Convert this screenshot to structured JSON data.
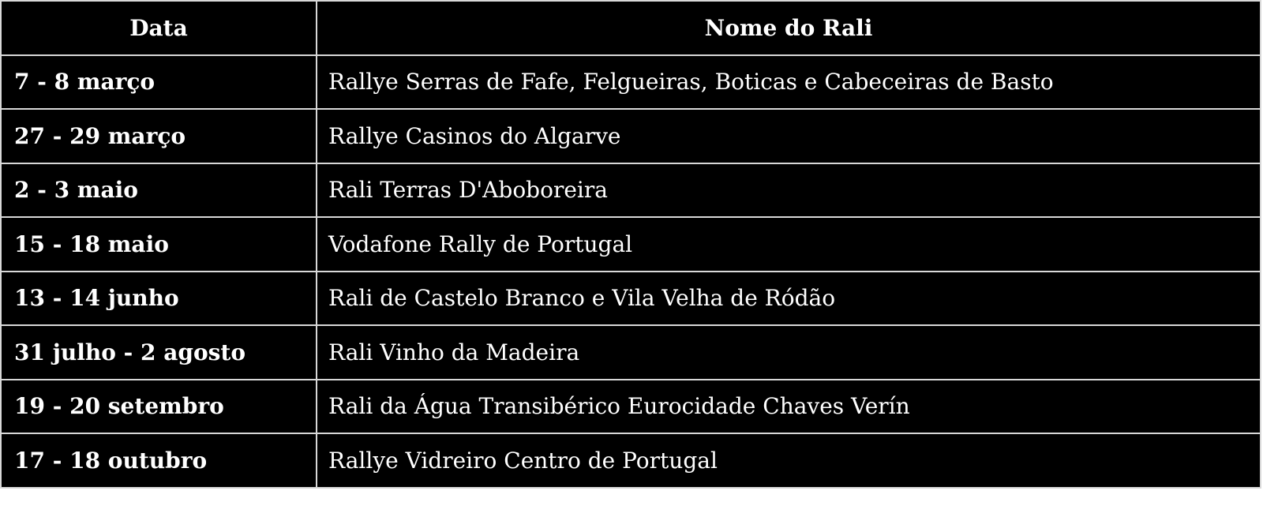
{
  "table": {
    "headers": [
      "Data",
      "Nome do Rali"
    ],
    "rows": [
      {
        "date": "7 - 8 março",
        "name": "Rallye Serras de Fafe, Felgueiras, Boticas e Cabeceiras de Basto"
      },
      {
        "date": "27 - 29 março",
        "name": "Rallye Casinos do Algarve"
      },
      {
        "date": "2 - 3 maio",
        "name": "Rali Terras D'Aboboreira"
      },
      {
        "date": "15 - 18 maio",
        "name": "Vodafone Rally de Portugal"
      },
      {
        "date": "13 - 14 junho",
        "name": "Rali de Castelo Branco e Vila Velha de Ródão"
      },
      {
        "date": "31 julho - 2 agosto",
        "name": "Rali Vinho da Madeira"
      },
      {
        "date": "19 - 20 setembro",
        "name": "Rali da Água Transibérico Eurocidade Chaves Verín"
      },
      {
        "date": "17 - 18 outubro",
        "name": "Rallye Vidreiro Centro de Portugal"
      }
    ]
  }
}
